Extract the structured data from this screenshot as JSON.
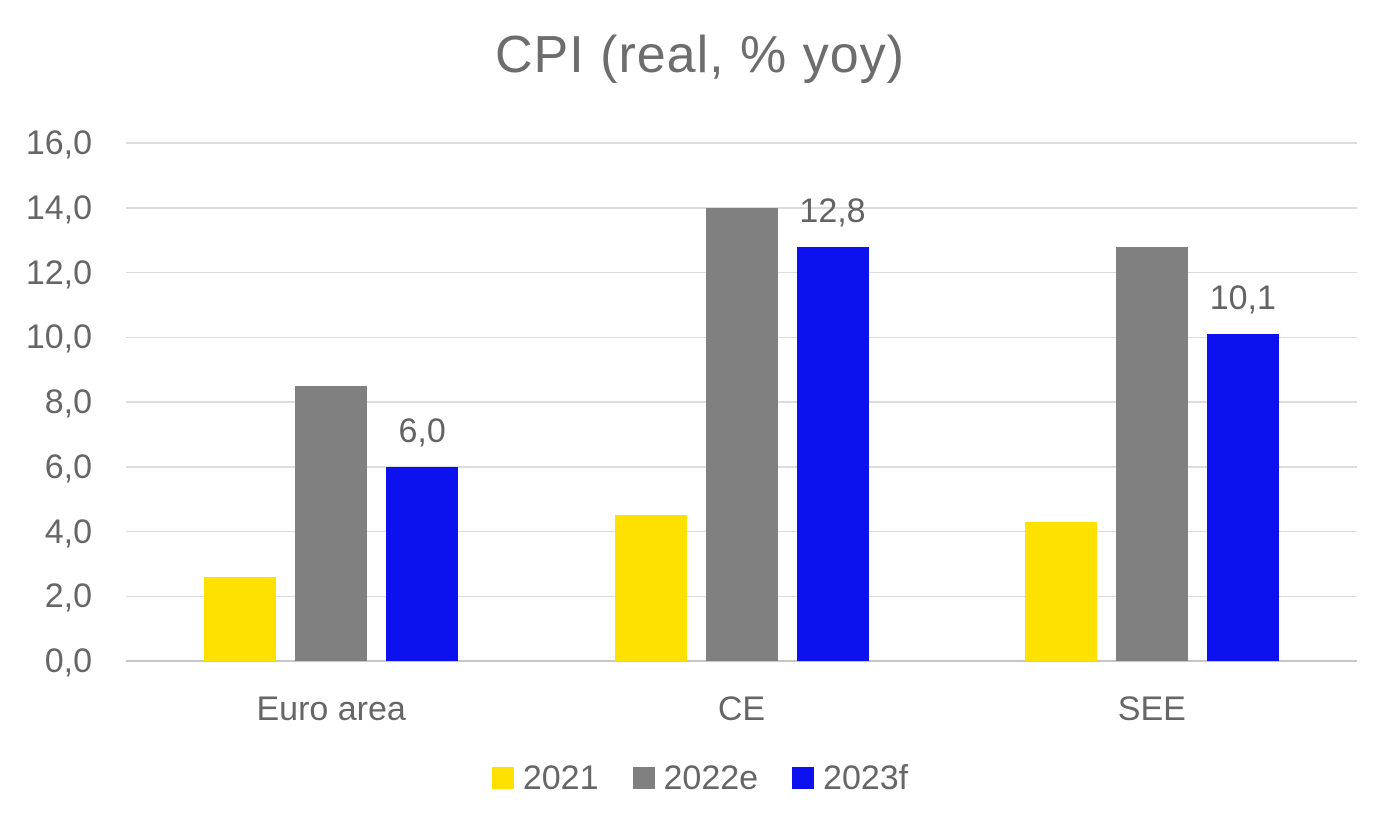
{
  "chart_data": {
    "type": "bar",
    "title": "CPI (real, % yoy)",
    "categories": [
      "Euro area",
      "CE",
      "SEE"
    ],
    "series": [
      {
        "name": "2021",
        "color": "#ffe100",
        "values": [
          2.6,
          4.5,
          4.3
        ]
      },
      {
        "name": "2022e",
        "color": "#808080",
        "values": [
          8.5,
          14.0,
          12.8
        ]
      },
      {
        "name": "2023f",
        "color": "#0d11f0",
        "values": [
          6.0,
          12.8,
          10.1
        ]
      }
    ],
    "data_labels": {
      "series": "2023f",
      "labels": [
        "6,0",
        "12,8",
        "10,1"
      ]
    },
    "y_axis": {
      "min": 0,
      "max": 16,
      "step": 2,
      "tick_labels": [
        "0,0",
        "2,0",
        "4,0",
        "6,0",
        "8,0",
        "10,0",
        "12,0",
        "14,0",
        "16,0"
      ]
    },
    "xlabel": "",
    "ylabel": "",
    "grid": true,
    "legend_position": "bottom",
    "decimal_separator": ","
  }
}
